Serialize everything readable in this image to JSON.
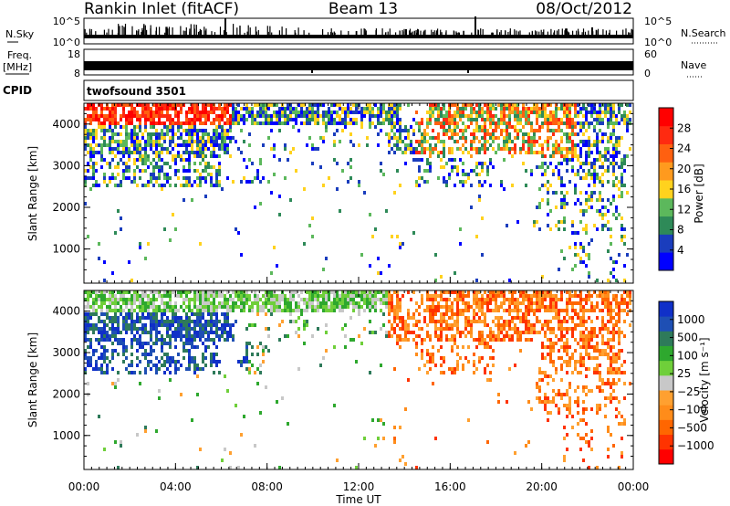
{
  "header": {
    "station": "Rankin Inlet (fitACF)",
    "beam": "Beam 13",
    "date": "08/Oct/2012"
  },
  "strips": {
    "nsky_label": "N.Sky",
    "nsky_ticks": [
      "10^5",
      "10^0"
    ],
    "nsearch_label": "N.Search",
    "nsearch_ticks": [
      "10^5",
      "10^0"
    ],
    "freq_label": "Freq.",
    "freq_unit": "[MHz]",
    "freq_ticks": [
      "18",
      "8"
    ],
    "nave_label": "Nave",
    "nave_ticks": [
      "60",
      "0"
    ],
    "cpid_label": "CPID",
    "cpid_value": "twofsound 3501"
  },
  "colors": {
    "power_scale": [
      "#0000ff",
      "#1a3dbd",
      "#2e8a58",
      "#5cb85c",
      "#ffd21e",
      "#ff9a1e",
      "#ff6010",
      "#ff2a10",
      "#ff0000"
    ],
    "velocity_scale": [
      "#ff0000",
      "#ff3300",
      "#ff6600",
      "#ff8c1a",
      "#ffa030",
      "#c8c8c8",
      "#6fcf3a",
      "#2ea82e",
      "#2e7a5a",
      "#1e4fb4",
      "#1030c8"
    ]
  },
  "chart_data": [
    {
      "type": "heatmap",
      "panel": "power",
      "xlabel": "Time UT",
      "ylabel": "Slant Range [km]",
      "x_ticks": [
        "00:00",
        "04:00",
        "08:00",
        "12:00",
        "16:00",
        "20:00",
        "00:00"
      ],
      "y_ticks": [
        "1000",
        "2000",
        "3000",
        "4000"
      ],
      "ylim": [
        180,
        4500
      ],
      "colorbar": {
        "label": "Power [dB]",
        "ticks": [
          "28",
          "24",
          "20",
          "16",
          "12",
          "8",
          "4"
        ],
        "range": [
          0,
          30
        ]
      }
    },
    {
      "type": "heatmap",
      "panel": "velocity",
      "xlabel": "Time UT",
      "ylabel": "Slant Range [km]",
      "x_ticks": [
        "00:00",
        "04:00",
        "08:00",
        "12:00",
        "16:00",
        "20:00",
        "00:00"
      ],
      "y_ticks": [
        "1000",
        "2000",
        "3000",
        "4000"
      ],
      "ylim": [
        180,
        4500
      ],
      "colorbar": {
        "label": "Velocity [m s⁻¹]",
        "ticks": [
          "1000",
          "500",
          "100",
          "25",
          "−25",
          "−100",
          "−500",
          "−1000"
        ]
      }
    }
  ]
}
